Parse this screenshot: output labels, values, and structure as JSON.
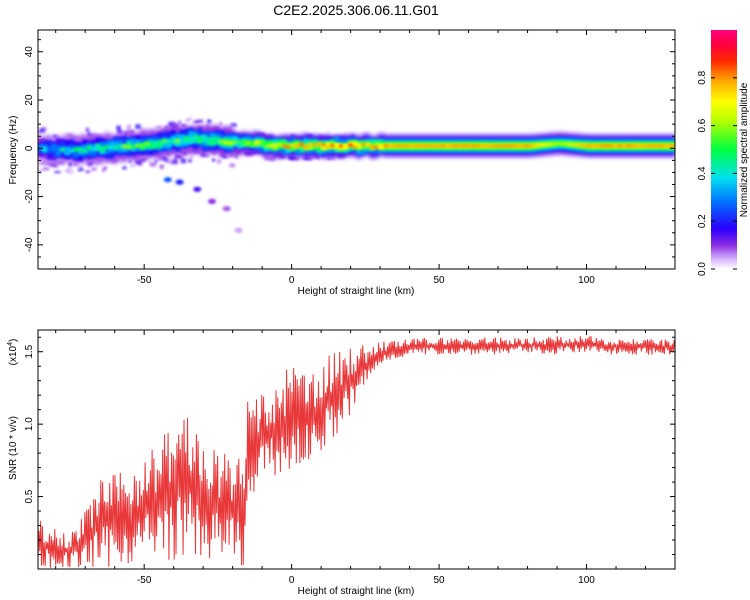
{
  "figure": {
    "title": "C2E2.2025.306.06.11.G01"
  },
  "chart_data": [
    {
      "type": "heatmap",
      "xlabel": "Height of straight line (km)",
      "ylabel": "Frequency (Hz)",
      "xlim": [
        -86,
        130
      ],
      "ylim": [
        -50,
        49
      ],
      "xticks": [
        -50,
        0,
        50,
        100
      ],
      "yticks": [
        -40,
        -20,
        0,
        20,
        40
      ],
      "colorbar": {
        "label": "Normalized spectral amplitude",
        "range": [
          0.0,
          1.0
        ],
        "ticks": [
          "0.0",
          "0.2",
          "0.4",
          "0.6",
          "0.8"
        ],
        "tick_values": [
          0.0,
          0.2,
          0.4,
          0.6,
          0.8
        ]
      },
      "main_ridge": {
        "x": [
          -85,
          -75,
          -65,
          -55,
          -45,
          -35,
          -25,
          -15,
          -5,
          0,
          10,
          20,
          30,
          50,
          70,
          80,
          90,
          100,
          110,
          130
        ],
        "y_hz": [
          0,
          -1,
          0,
          1,
          2,
          4,
          3,
          2,
          1,
          1,
          1,
          1,
          1,
          1,
          1,
          1,
          2,
          1,
          1,
          1
        ],
        "peak_amplitude": [
          0.4,
          0.5,
          0.55,
          0.6,
          0.6,
          0.6,
          0.65,
          0.75,
          0.85,
          0.9,
          0.95,
          0.95,
          0.95,
          0.95,
          0.95,
          0.95,
          0.75,
          0.95,
          0.95,
          0.95
        ]
      },
      "secondary_branch": {
        "x": [
          -42,
          -38,
          -32,
          -27,
          -22,
          -18
        ],
        "y_hz": [
          -13,
          -14,
          -17,
          -22,
          -25,
          -34
        ],
        "amplitude": [
          0.25,
          0.2,
          0.15,
          0.1,
          0.08,
          0.05
        ]
      }
    },
    {
      "type": "line",
      "xlabel": "Height of straight line (km)",
      "ylabel": "SNR (10 * v/v)",
      "y_multiplier": "(x10",
      "y_multiplier_exp": "4",
      "y_multiplier_close": ")",
      "xlim": [
        -86,
        130
      ],
      "ylim": [
        0,
        16500
      ],
      "xticks": [
        -50,
        0,
        50,
        100
      ],
      "yticks": [
        5000,
        10000,
        15000
      ],
      "ytick_labels": [
        "0.5",
        "1.0",
        "1.5"
      ],
      "color": "#e8383a",
      "series": [
        {
          "x": [
            -86,
            -80,
            -75,
            -70,
            -65,
            -60,
            -55,
            -50,
            -45,
            -40,
            -35,
            -30,
            -25,
            -20,
            -16,
            -15,
            -12,
            -10,
            -5,
            0,
            5,
            10,
            15,
            20,
            25,
            30,
            35,
            40,
            50,
            60,
            70,
            80,
            90,
            100,
            110,
            120,
            130
          ],
          "y_low": [
            0,
            0,
            0,
            0,
            0,
            200,
            300,
            500,
            400,
            600,
            800,
            700,
            500,
            300,
            200,
            2500,
            5000,
            6000,
            6500,
            6500,
            7000,
            8000,
            9000,
            10500,
            12500,
            14000,
            14500,
            14700,
            14800,
            14800,
            14800,
            14900,
            14800,
            14900,
            14800,
            14800,
            14800
          ],
          "y_high": [
            3500,
            3000,
            2500,
            4000,
            6500,
            6500,
            7000,
            8000,
            9000,
            10500,
            11000,
            9000,
            8000,
            8000,
            7500,
            12000,
            13000,
            12000,
            12500,
            14500,
            13500,
            14500,
            15000,
            15500,
            15500,
            15700,
            15800,
            15900,
            16000,
            16000,
            16000,
            16000,
            16100,
            16100,
            16000,
            15900,
            15800
          ]
        }
      ]
    }
  ]
}
